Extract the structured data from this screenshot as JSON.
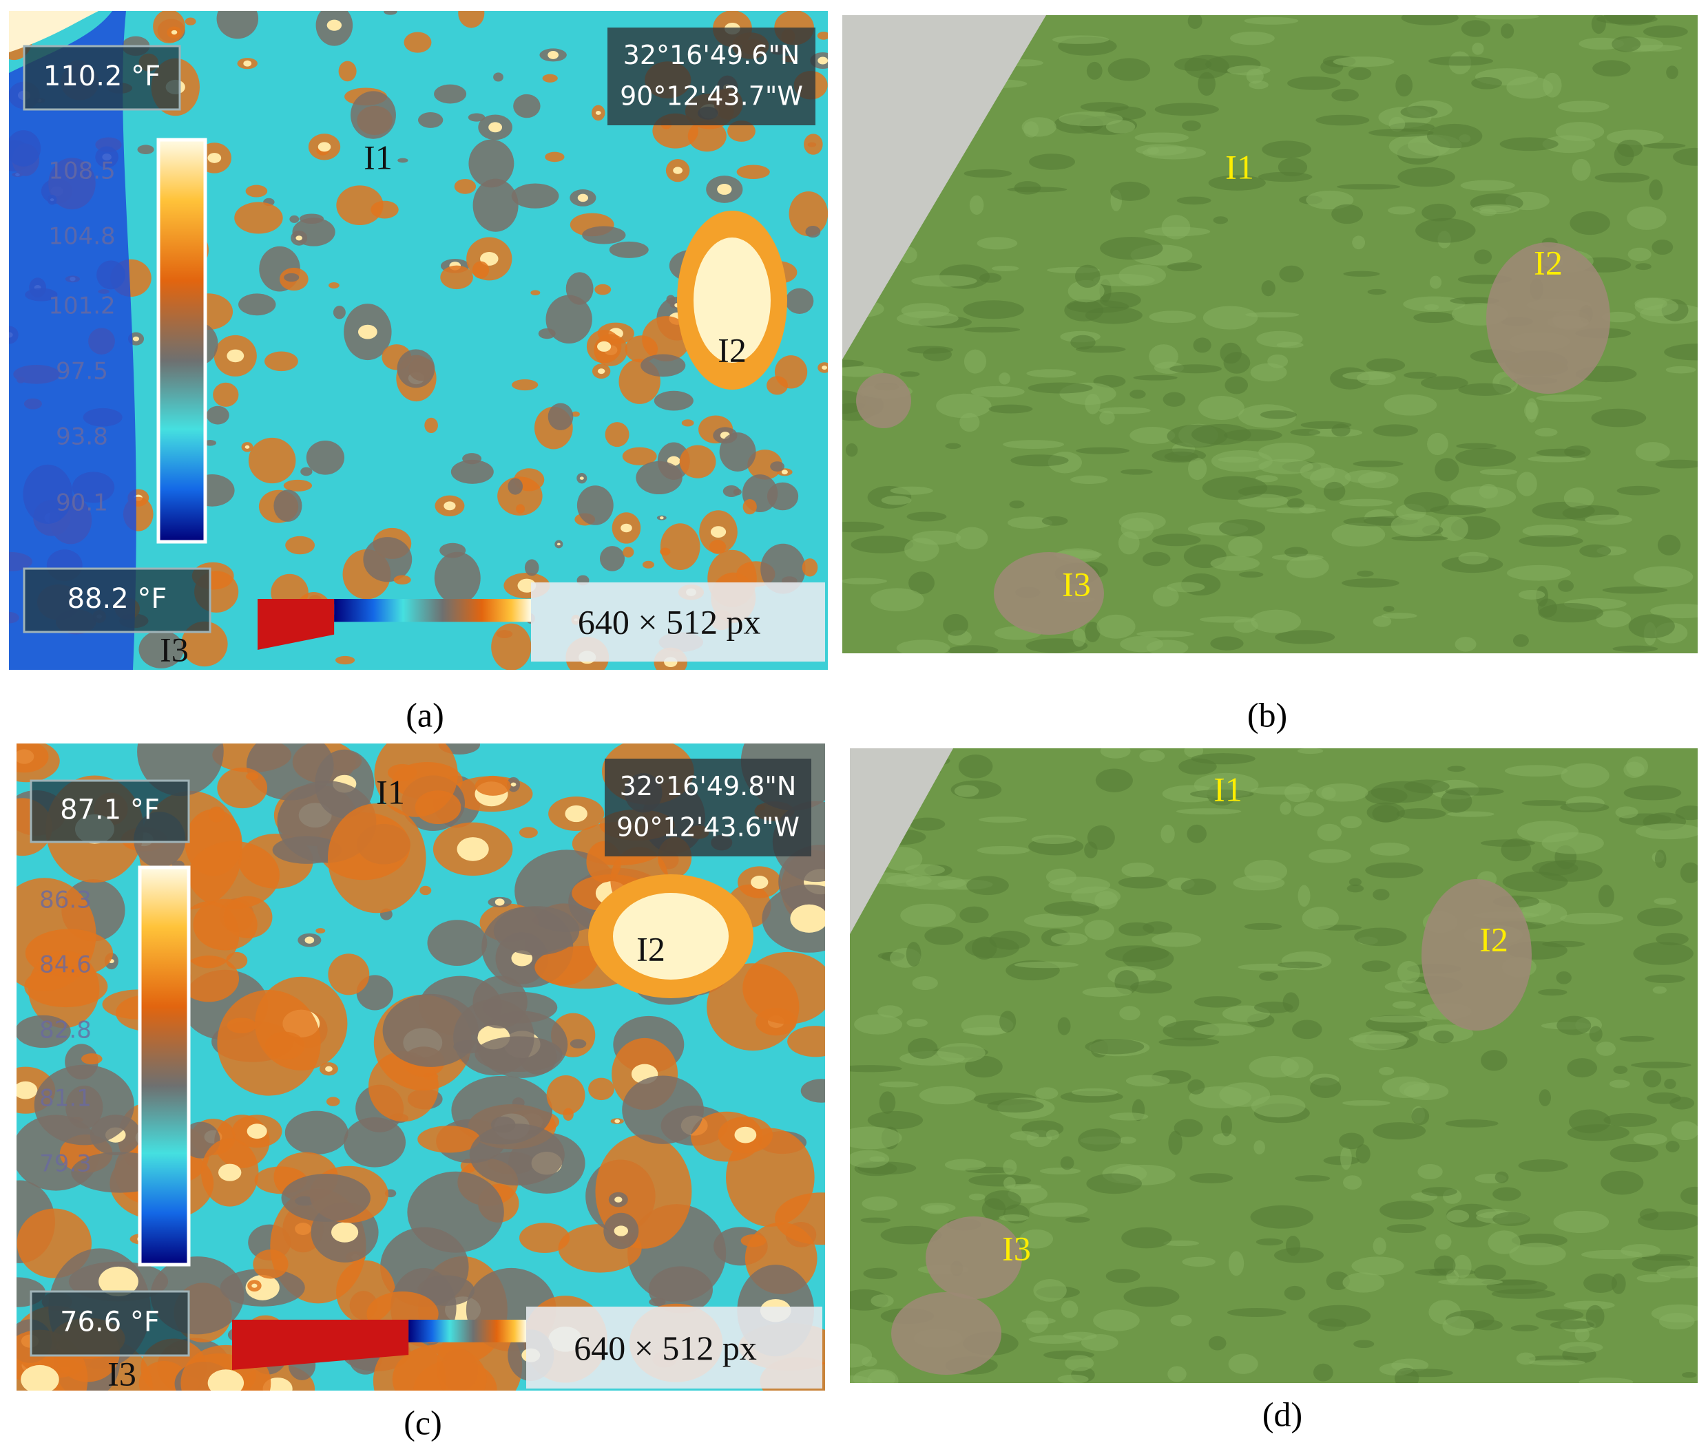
{
  "panels": [
    {
      "caption": "(a)",
      "kind": "thermal",
      "max_temp": "110.2 °F",
      "min_temp": "88.2 °F",
      "scale_labels": [
        "108.5",
        "104.8",
        "101.2",
        "97.5",
        "93.8",
        "90.1"
      ],
      "coordinates": [
        "32°16'49.6\"N",
        "90°12'43.7\"W"
      ],
      "resolution": "640  × 512 px",
      "markers": [
        "I1",
        "I2",
        "I3"
      ]
    },
    {
      "caption": "(b)",
      "kind": "photo",
      "markers": [
        "I1",
        "I2",
        "I3"
      ]
    },
    {
      "caption": "(c)",
      "kind": "thermal",
      "max_temp": "87.1 °F",
      "min_temp": "76.6 °F",
      "scale_labels": [
        "86.3",
        "84.6",
        "82.8",
        "81.1",
        "79.3"
      ],
      "coordinates": [
        "32°16'49.8\"N",
        "90°12'43.6\"W"
      ],
      "resolution": "640  × 512 px",
      "markers": [
        "I1",
        "I2",
        "I3"
      ]
    },
    {
      "caption": "(d)",
      "kind": "photo",
      "markers": [
        "I1",
        "I2",
        "I3"
      ]
    }
  ]
}
